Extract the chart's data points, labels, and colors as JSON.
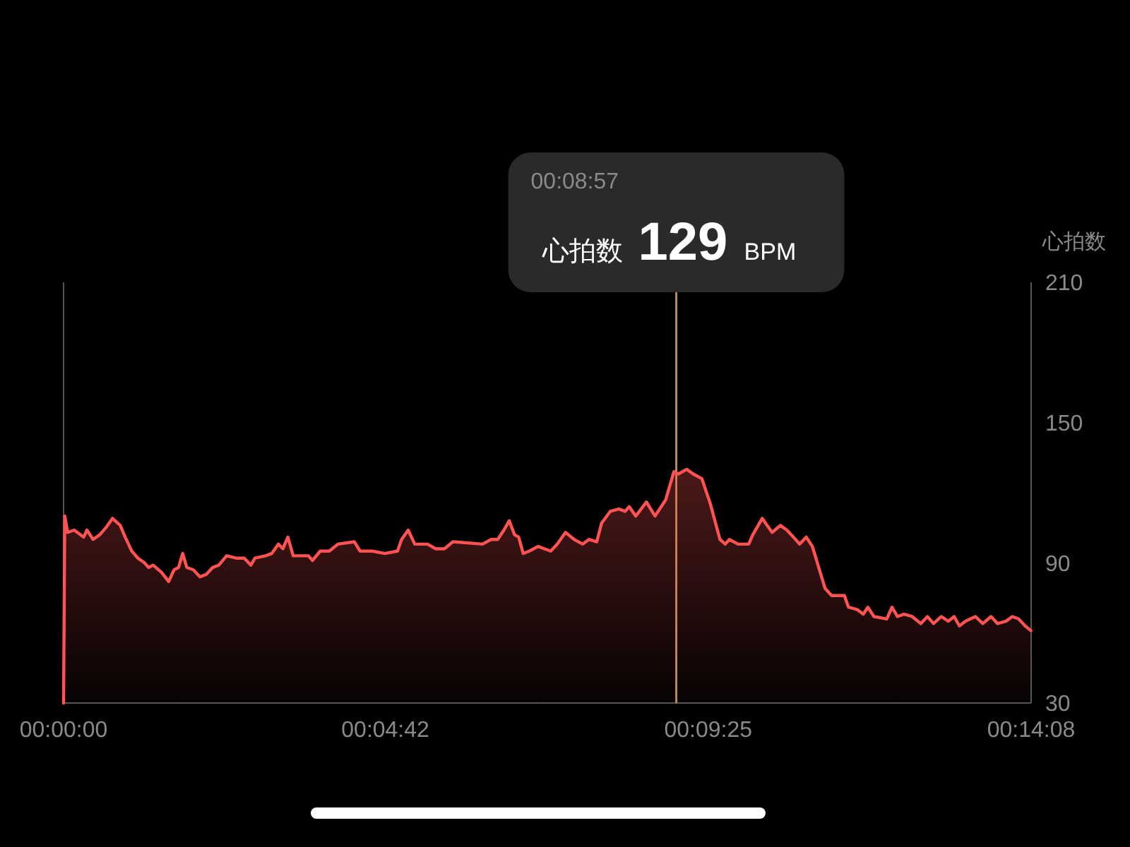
{
  "chart_data": {
    "type": "area",
    "ylabel": "心拍数",
    "annotations": [
      "00:08:57",
      "心拍数",
      "129",
      "BPM"
    ],
    "ref_lines": [
      {
        "axis": "x",
        "value": 0.149167,
        "color": "#c8924e"
      }
    ],
    "xlim": [
      0,
      0.235556
    ],
    "ylim": [
      30,
      210
    ],
    "xticks": [
      {
        "value": 0,
        "label": "00:00:00"
      },
      {
        "value": 0.078333,
        "label": "00:04:42"
      },
      {
        "value": 0.156944,
        "label": "00:09:25"
      },
      {
        "value": 0.235556,
        "label": "00:14:08"
      }
    ],
    "yticks": [
      30,
      90,
      150,
      210
    ],
    "grid": false,
    "marker": "none",
    "line_style": "solid",
    "series": [
      {
        "color": "#ff5252",
        "x": [
          0,
          0.0003,
          0.001,
          0.0026,
          0.0049,
          0.0057,
          0.0072,
          0.0088,
          0.0103,
          0.0119,
          0.0138,
          0.015,
          0.0166,
          0.0181,
          0.0197,
          0.0207,
          0.0218,
          0.0238,
          0.0256,
          0.0269,
          0.028,
          0.029,
          0.03,
          0.0316,
          0.0332,
          0.0347,
          0.0363,
          0.0378,
          0.0397,
          0.042,
          0.044,
          0.0456,
          0.0466,
          0.0492,
          0.0507,
          0.0523,
          0.0534,
          0.0546,
          0.0559,
          0.0596,
          0.0606,
          0.0625,
          0.0647,
          0.0668,
          0.0708,
          0.0722,
          0.0751,
          0.0782,
          0.0813,
          0.0823,
          0.0839,
          0.0855,
          0.0886,
          0.0906,
          0.0927,
          0.0948,
          0.102,
          0.1041,
          0.1057,
          0.1072,
          0.1085,
          0.1098,
          0.1108,
          0.1119,
          0.1134,
          0.1155,
          0.1186,
          0.1202,
          0.1222,
          0.1243,
          0.1264,
          0.1279,
          0.1298,
          0.131,
          0.1331,
          0.1352,
          0.1367,
          0.1377,
          0.1393,
          0.1419,
          0.144,
          0.1466,
          0.1486,
          0.1497,
          0.1517,
          0.1533,
          0.1554,
          0.1575,
          0.1598,
          0.1611,
          0.1621,
          0.1642,
          0.1668,
          0.1678,
          0.1701,
          0.1725,
          0.1745,
          0.1761,
          0.1782,
          0.1792,
          0.1808,
          0.1823,
          0.1854,
          0.187,
          0.189,
          0.1901,
          0.1911,
          0.1932,
          0.1947,
          0.1958,
          0.1973,
          0.2004,
          0.2017,
          0.203,
          0.2046,
          0.2066,
          0.2087,
          0.2103,
          0.2118,
          0.2137,
          0.2154,
          0.2168,
          0.2181,
          0.2196,
          0.222,
          0.2238,
          0.2258,
          0.2274,
          0.2294,
          0.231,
          0.2325,
          0.2341,
          0.2355
        ],
        "values": [
          30,
          110,
          103,
          104,
          101,
          104,
          100,
          102,
          105,
          109,
          106,
          101,
          95,
          92,
          90,
          88,
          89,
          86,
          82,
          87,
          88,
          94,
          88,
          87,
          84,
          85,
          88,
          89,
          93,
          92,
          92,
          89,
          92,
          93,
          94,
          98,
          96,
          101,
          93,
          93,
          91,
          95,
          95,
          98,
          99,
          95,
          95,
          94,
          95,
          100,
          104,
          98,
          98,
          96,
          96,
          99,
          98,
          100,
          100,
          104,
          108,
          102,
          101,
          94,
          95,
          97,
          95,
          98,
          103,
          100,
          98,
          100,
          99,
          107,
          112,
          113,
          112,
          114,
          110,
          116,
          110,
          117,
          129,
          128,
          130,
          128,
          126,
          115,
          100,
          98,
          100,
          98,
          98,
          102,
          109,
          103,
          106,
          104,
          100,
          98,
          101,
          97,
          79,
          76,
          76,
          76,
          71,
          70,
          68,
          71,
          67,
          66,
          71,
          67,
          68,
          67,
          64,
          67,
          64,
          67,
          65,
          67,
          63,
          65,
          67,
          64,
          67,
          64,
          65,
          67,
          66,
          63,
          61
        ]
      }
    ]
  }
}
